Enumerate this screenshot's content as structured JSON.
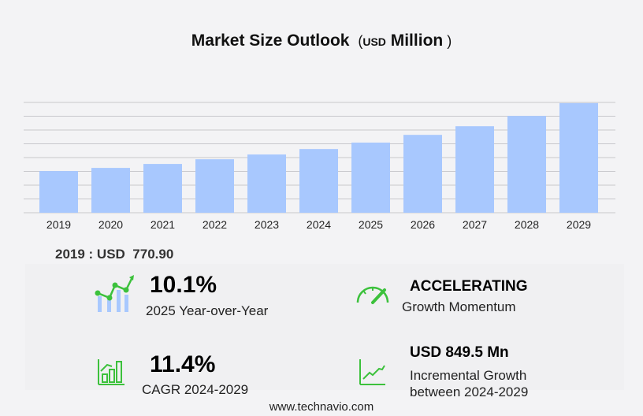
{
  "chart_data": {
    "type": "bar",
    "title": "Market Size Outlook",
    "unit_prefix": "USD",
    "unit": "Million",
    "categories": [
      "2019",
      "2020",
      "2021",
      "2022",
      "2023",
      "2024",
      "2025",
      "2026",
      "2027",
      "2028",
      "2029"
    ],
    "values": [
      770.9,
      829,
      902,
      989,
      1077,
      1178,
      1297,
      1440,
      1600,
      1790,
      2027.5
    ],
    "ylim": [
      0,
      2040
    ],
    "grid": true,
    "bar_color": "#a8c8fe",
    "grid_color": "#c8c8cc"
  },
  "base_year": {
    "label": "2019 : USD",
    "value": "770.90"
  },
  "stats": {
    "yoy": {
      "value": "10.1%",
      "label": "2025 Year-over-Year",
      "icon": "chart-trend-icon"
    },
    "momentum": {
      "value": "ACCELERATING",
      "label": "Growth Momentum",
      "icon": "speedometer-icon"
    },
    "cagr": {
      "value": "11.4%",
      "label": "CAGR 2024-2029",
      "icon": "bar-growth-icon"
    },
    "incremental": {
      "value": "USD 849.5 Mn",
      "label1": "Incremental Growth",
      "label2": "between 2024-2029",
      "icon": "line-growth-icon"
    }
  },
  "accent": "#3cc13c",
  "footer": "www.technavio.com"
}
